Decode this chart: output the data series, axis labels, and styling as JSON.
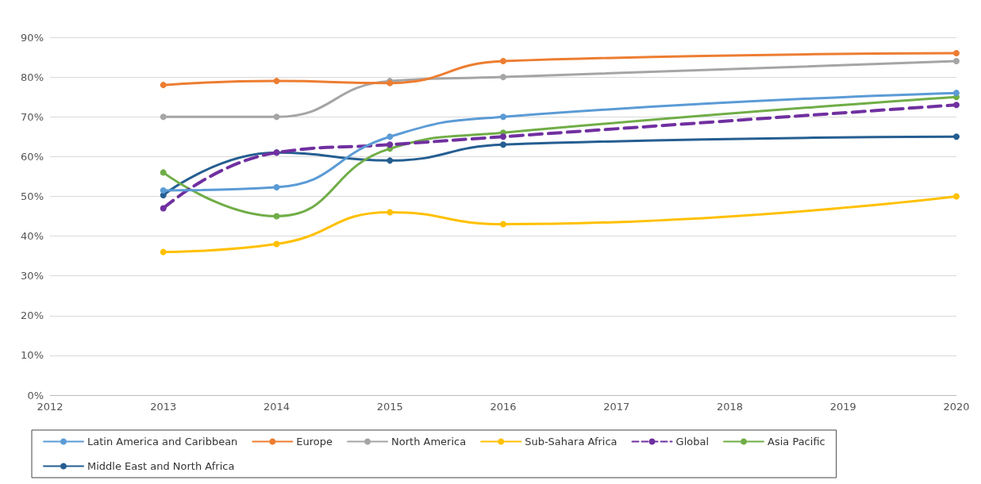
{
  "chart_data": {
    "type": "line",
    "x": [
      2013,
      2014,
      2015,
      2016,
      2020
    ],
    "series": [
      {
        "name": "Latin America and Caribbean",
        "color": "#5b9bd5",
        "values": [
          51.5,
          52.3,
          65,
          70,
          76
        ]
      },
      {
        "name": "Europe",
        "color": "#ed7d31",
        "values": [
          78,
          79,
          78.5,
          84,
          86
        ]
      },
      {
        "name": "North America",
        "color": "#a5a5a5",
        "values": [
          70,
          70,
          79,
          80,
          84
        ]
      },
      {
        "name": "Sub-Sahara Africa",
        "color": "#ffc000",
        "values": [
          36,
          38,
          46,
          43,
          50
        ]
      },
      {
        "name": "Global",
        "color": "#7030a0",
        "values": [
          47,
          61,
          63,
          65,
          73
        ],
        "line_style": "dashed"
      },
      {
        "name": "Asia Pacific",
        "color": "#70ad47",
        "values": [
          56,
          45,
          62,
          66,
          75
        ]
      },
      {
        "name": "Middle East and North Africa",
        "color": "#255e91",
        "values": [
          50.3,
          61,
          59,
          63,
          65
        ]
      }
    ],
    "xlim": [
      2012,
      2020
    ],
    "xticks": [
      2012,
      2013,
      2014,
      2015,
      2016,
      2017,
      2018,
      2019,
      2020
    ],
    "ylim": [
      0,
      90
    ],
    "yticks": [
      {
        "value": 0,
        "label": "0%"
      },
      {
        "value": 10,
        "label": "10%"
      },
      {
        "value": 20,
        "label": "20%"
      },
      {
        "value": 30,
        "label": "30%"
      },
      {
        "value": 40,
        "label": "40%"
      },
      {
        "value": 50,
        "label": "50%"
      },
      {
        "value": 60,
        "label": "60%"
      },
      {
        "value": 70,
        "label": "70%"
      },
      {
        "value": 80,
        "label": "80%"
      },
      {
        "value": 90,
        "label": "90%"
      }
    ],
    "grid": "y",
    "legend": "bottom",
    "marker": "circle",
    "line_style": "solid"
  }
}
